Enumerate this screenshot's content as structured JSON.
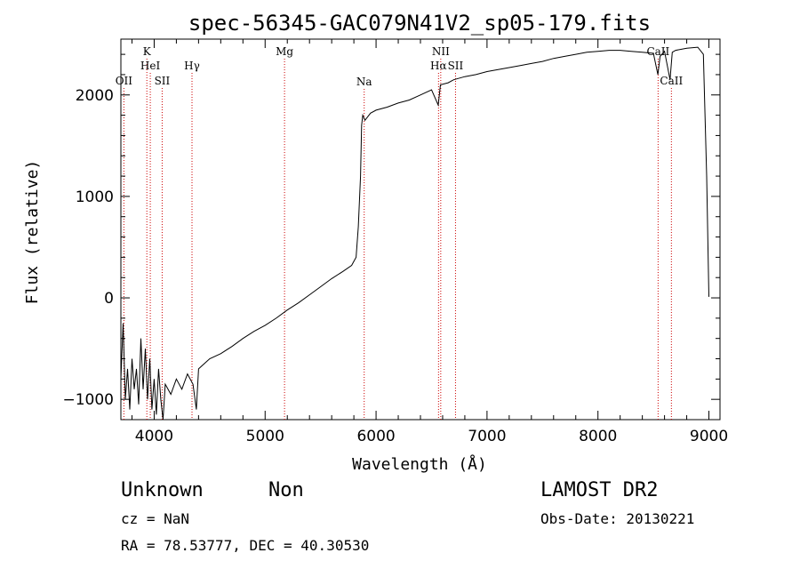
{
  "chart_data": {
    "type": "line",
    "title": "spec-56345-GAC079N41V2_sp05-179.fits",
    "xlabel": "Wavelength (Å)",
    "ylabel": "Flux (relative)",
    "xlim": [
      3700,
      9100
    ],
    "ylim": [
      -1200,
      2550
    ],
    "xticks": [
      4000,
      5000,
      6000,
      7000,
      8000,
      9000
    ],
    "yticks": [
      -1000,
      0,
      1000,
      2000
    ],
    "grid": false,
    "series": [
      {
        "points": [
          [
            3700,
            -800
          ],
          [
            3720,
            -250
          ],
          [
            3740,
            -1000
          ],
          [
            3760,
            -700
          ],
          [
            3780,
            -1100
          ],
          [
            3800,
            -600
          ],
          [
            3820,
            -900
          ],
          [
            3840,
            -700
          ],
          [
            3860,
            -1050
          ],
          [
            3880,
            -400
          ],
          [
            3900,
            -900
          ],
          [
            3920,
            -500
          ],
          [
            3940,
            -1000
          ],
          [
            3960,
            -600
          ],
          [
            3980,
            -1100
          ],
          [
            4000,
            -800
          ],
          [
            4020,
            -1150
          ],
          [
            4040,
            -700
          ],
          [
            4060,
            -1000
          ],
          [
            4080,
            -1200
          ],
          [
            4100,
            -850
          ],
          [
            4150,
            -950
          ],
          [
            4200,
            -800
          ],
          [
            4250,
            -900
          ],
          [
            4300,
            -750
          ],
          [
            4350,
            -850
          ],
          [
            4380,
            -1100
          ],
          [
            4400,
            -700
          ],
          [
            4450,
            -650
          ],
          [
            4500,
            -600
          ],
          [
            4600,
            -550
          ],
          [
            4700,
            -480
          ],
          [
            4800,
            -400
          ],
          [
            4900,
            -330
          ],
          [
            5000,
            -270
          ],
          [
            5100,
            -200
          ],
          [
            5200,
            -120
          ],
          [
            5300,
            -50
          ],
          [
            5400,
            30
          ],
          [
            5500,
            110
          ],
          [
            5600,
            190
          ],
          [
            5700,
            260
          ],
          [
            5780,
            320
          ],
          [
            5820,
            400
          ],
          [
            5840,
            700
          ],
          [
            5860,
            1200
          ],
          [
            5870,
            1700
          ],
          [
            5880,
            1800
          ],
          [
            5900,
            1750
          ],
          [
            5950,
            1820
          ],
          [
            6000,
            1850
          ],
          [
            6100,
            1880
          ],
          [
            6200,
            1920
          ],
          [
            6300,
            1950
          ],
          [
            6400,
            2000
          ],
          [
            6500,
            2050
          ],
          [
            6560,
            1900
          ],
          [
            6580,
            2100
          ],
          [
            6650,
            2120
          ],
          [
            6700,
            2150
          ],
          [
            6800,
            2180
          ],
          [
            6900,
            2200
          ],
          [
            7000,
            2230
          ],
          [
            7100,
            2250
          ],
          [
            7200,
            2270
          ],
          [
            7300,
            2290
          ],
          [
            7400,
            2310
          ],
          [
            7500,
            2330
          ],
          [
            7600,
            2360
          ],
          [
            7700,
            2380
          ],
          [
            7800,
            2400
          ],
          [
            7900,
            2420
          ],
          [
            8000,
            2430
          ],
          [
            8100,
            2440
          ],
          [
            8200,
            2440
          ],
          [
            8300,
            2430
          ],
          [
            8400,
            2420
          ],
          [
            8500,
            2410
          ],
          [
            8540,
            2200
          ],
          [
            8560,
            2380
          ],
          [
            8600,
            2430
          ],
          [
            8650,
            2150
          ],
          [
            8670,
            2420
          ],
          [
            8700,
            2440
          ],
          [
            8800,
            2460
          ],
          [
            8900,
            2470
          ],
          [
            8950,
            2400
          ],
          [
            8980,
            1200
          ],
          [
            9000,
            10
          ]
        ]
      }
    ],
    "lines": [
      {
        "label": "OII",
        "x": 3727,
        "tier": "a"
      },
      {
        "label": "K",
        "x": 3934,
        "tier": "d"
      },
      {
        "label": "HeI",
        "x": 3965,
        "tier": "c"
      },
      {
        "label": "SII",
        "x": 4072,
        "tier": "a"
      },
      {
        "label": "Hγ",
        "x": 4341,
        "tier": "c"
      },
      {
        "label": "Mg",
        "x": 5175,
        "tier": "d"
      },
      {
        "label": "Na",
        "x": 5893,
        "tier": "b"
      },
      {
        "label": "NII",
        "x": 6583,
        "tier": "d"
      },
      {
        "label": "Hα",
        "x": 6563,
        "tier": "c"
      },
      {
        "label": "SII",
        "x": 6716,
        "tier": "c"
      },
      {
        "label": "CaII",
        "x": 8542,
        "tier": "d"
      },
      {
        "label": "CaII",
        "x": 8662,
        "tier": "a"
      }
    ],
    "line_color": "#cc0000"
  },
  "info": {
    "class_name": "Unknown",
    "subclass": "Non",
    "survey": "LAMOST DR2",
    "cz": "cz = NaN",
    "obs_date": "Obs-Date: 20130221",
    "coords": "RA =  78.53777, DEC =  40.30530"
  }
}
